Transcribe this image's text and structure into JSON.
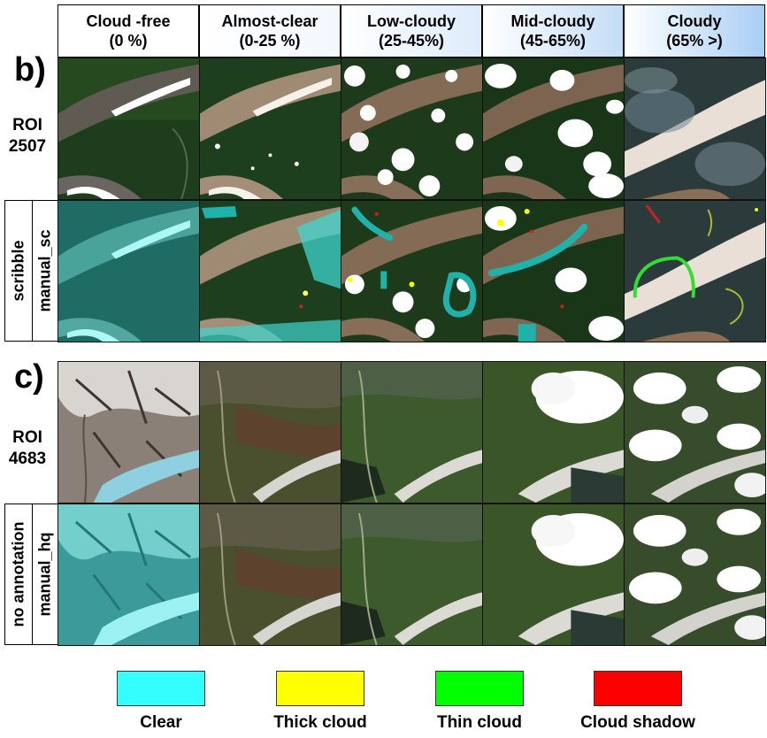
{
  "columns": [
    {
      "title": "Cloud -free",
      "range": "(0 %)",
      "bg": "#ffffff"
    },
    {
      "title": "Almost-clear",
      "range": "(0-25 %)",
      "bg": "#f2f8fe"
    },
    {
      "title": "Low-cloudy",
      "range": "(25-45%)",
      "bg": "#dcebfb"
    },
    {
      "title": "Mid-cloudy",
      "range": "(45-65%)",
      "bg": "#c3ddf8"
    },
    {
      "title": "Cloudy",
      "range": "(65% >)",
      "bg": "#a8cef5"
    }
  ],
  "panel_b": {
    "letter": "b)",
    "roi": {
      "label": "ROI",
      "id": "2507"
    },
    "annotation": {
      "type": "scribble",
      "source": "manual_sc"
    }
  },
  "panel_c": {
    "letter": "c)",
    "roi": {
      "label": "ROI",
      "id": "4683"
    },
    "annotation": {
      "type": "no annotation",
      "source": "manual_hq"
    }
  },
  "legend": [
    {
      "label": "Clear",
      "color": "#33ffff"
    },
    {
      "label": "Thick cloud",
      "color": "#ffff00"
    },
    {
      "label": "Thin cloud",
      "color": "#00ff00"
    },
    {
      "label": "Cloud shadow",
      "color": "#ff0000"
    }
  ]
}
